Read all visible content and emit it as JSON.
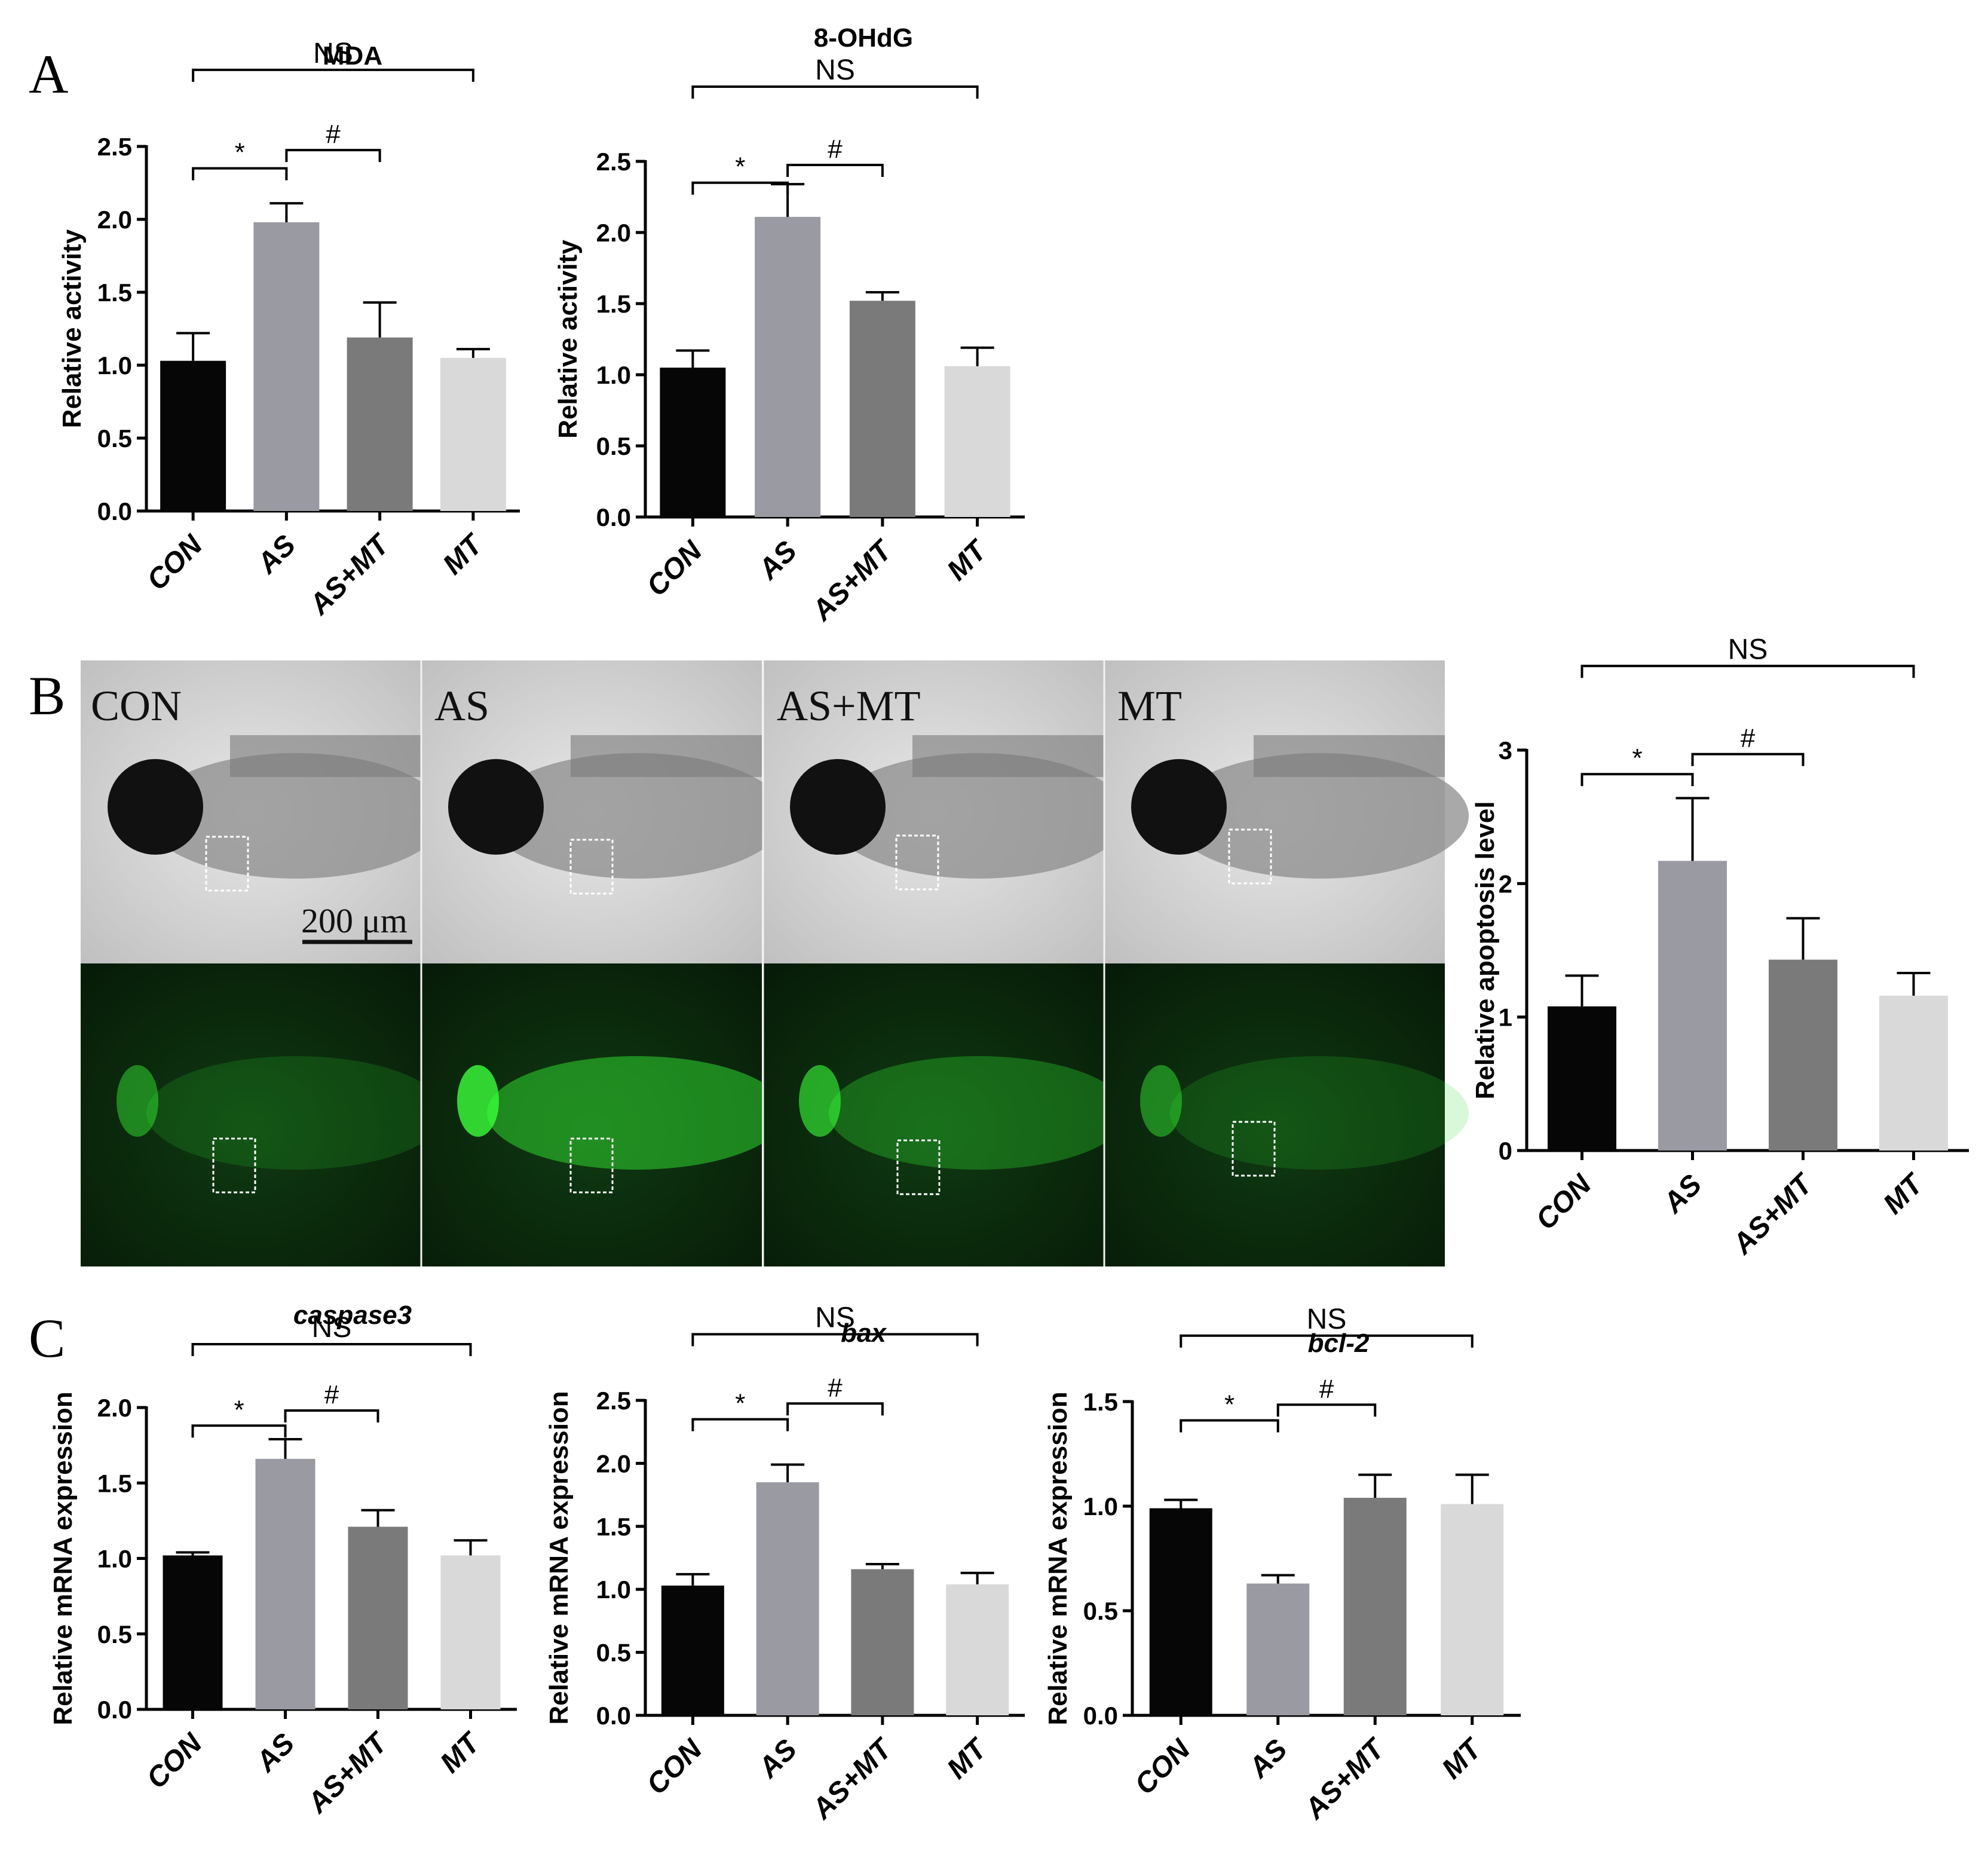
{
  "panels": {
    "a": "A",
    "b": "B",
    "c": "C"
  },
  "colors": {
    "CON": "#060606",
    "AS": "#9a9aa2",
    "AS+MT": "#7a7a7a",
    "MT": "#d9d9d9",
    "fluorescence": "#2fd62f"
  },
  "images": {
    "labels": [
      "CON",
      "AS",
      "AS+MT",
      "MT"
    ],
    "scale_bar": "200 μm",
    "rows": [
      "brightfield",
      "fluorescence"
    ]
  },
  "chart_data": [
    {
      "type": "bar",
      "title": "MDA",
      "ylabel": "Relative activity",
      "ylim": [
        0,
        2.5
      ],
      "yticks": [
        "0.0",
        "0.5",
        "1.0",
        "1.5",
        "2.0",
        "2.5"
      ],
      "categories": [
        "CON",
        "AS",
        "AS+MT",
        "MT"
      ],
      "values": [
        1.03,
        1.98,
        1.19,
        1.05
      ],
      "errors": [
        0.19,
        0.13,
        0.24,
        0.06
      ],
      "annotations": [
        {
          "text": "*",
          "pair": [
            "CON",
            "AS"
          ]
        },
        {
          "text": "#",
          "pair": [
            "AS",
            "AS+MT"
          ]
        },
        {
          "text": "NS",
          "pair": [
            "CON",
            "MT"
          ]
        }
      ]
    },
    {
      "type": "bar",
      "title": "8-OHdG",
      "ylabel": "Relative activity",
      "ylim": [
        0,
        2.5
      ],
      "yticks": [
        "0.0",
        "0.5",
        "1.0",
        "1.5",
        "2.0",
        "2.5"
      ],
      "categories": [
        "CON",
        "AS",
        "AS+MT",
        "MT"
      ],
      "values": [
        1.05,
        2.11,
        1.52,
        1.06
      ],
      "errors": [
        0.12,
        0.23,
        0.06,
        0.13
      ],
      "annotations": [
        {
          "text": "*",
          "pair": [
            "CON",
            "AS"
          ]
        },
        {
          "text": "#",
          "pair": [
            "AS",
            "AS+MT"
          ]
        },
        {
          "text": "NS",
          "pair": [
            "CON",
            "MT"
          ]
        }
      ]
    },
    {
      "type": "bar",
      "title": "",
      "ylabel": "Relative apoptosis level",
      "ylim": [
        0,
        3
      ],
      "yticks": [
        "0",
        "1",
        "2",
        "3"
      ],
      "categories": [
        "CON",
        "AS",
        "AS+MT",
        "MT"
      ],
      "values": [
        1.08,
        2.17,
        1.43,
        1.16
      ],
      "errors": [
        0.23,
        0.47,
        0.31,
        0.17
      ],
      "annotations": [
        {
          "text": "*",
          "pair": [
            "CON",
            "AS"
          ]
        },
        {
          "text": "#",
          "pair": [
            "AS",
            "AS+MT"
          ]
        },
        {
          "text": "NS",
          "pair": [
            "CON",
            "MT"
          ]
        }
      ]
    },
    {
      "type": "bar",
      "title": "caspase3",
      "ylabel": "Relative mRNA expression",
      "ylim": [
        0,
        2.0
      ],
      "yticks": [
        "0.0",
        "0.5",
        "1.0",
        "1.5",
        "2.0"
      ],
      "categories": [
        "CON",
        "AS",
        "AS+MT",
        "MT"
      ],
      "values": [
        1.02,
        1.66,
        1.21,
        1.02
      ],
      "errors": [
        0.02,
        0.13,
        0.11,
        0.1
      ],
      "annotations": [
        {
          "text": "*",
          "pair": [
            "CON",
            "AS"
          ]
        },
        {
          "text": "#",
          "pair": [
            "AS",
            "AS+MT"
          ]
        },
        {
          "text": "NS",
          "pair": [
            "CON",
            "MT"
          ]
        }
      ]
    },
    {
      "type": "bar",
      "title": "bax",
      "ylabel": "Relative mRNA expression",
      "ylim": [
        0,
        2.5
      ],
      "yticks": [
        "0.0",
        "0.5",
        "1.0",
        "1.5",
        "2.0",
        "2.5"
      ],
      "categories": [
        "CON",
        "AS",
        "AS+MT",
        "MT"
      ],
      "values": [
        1.03,
        1.85,
        1.16,
        1.04
      ],
      "errors": [
        0.09,
        0.14,
        0.04,
        0.09
      ],
      "annotations": [
        {
          "text": "*",
          "pair": [
            "CON",
            "AS"
          ]
        },
        {
          "text": "#",
          "pair": [
            "AS",
            "AS+MT"
          ]
        },
        {
          "text": "NS",
          "pair": [
            "CON",
            "MT"
          ]
        }
      ]
    },
    {
      "type": "bar",
      "title": "bcl-2",
      "ylabel": "Relative mRNA expression",
      "ylim": [
        0,
        1.5
      ],
      "yticks": [
        "0.0",
        "0.5",
        "1.0",
        "1.5"
      ],
      "categories": [
        "CON",
        "AS",
        "AS+MT",
        "MT"
      ],
      "values": [
        0.99,
        0.63,
        1.04,
        1.01
      ],
      "errors": [
        0.04,
        0.04,
        0.11,
        0.14
      ],
      "annotations": [
        {
          "text": "*",
          "pair": [
            "CON",
            "AS"
          ]
        },
        {
          "text": "#",
          "pair": [
            "AS",
            "AS+MT"
          ]
        },
        {
          "text": "NS",
          "pair": [
            "CON",
            "MT"
          ]
        }
      ]
    }
  ]
}
